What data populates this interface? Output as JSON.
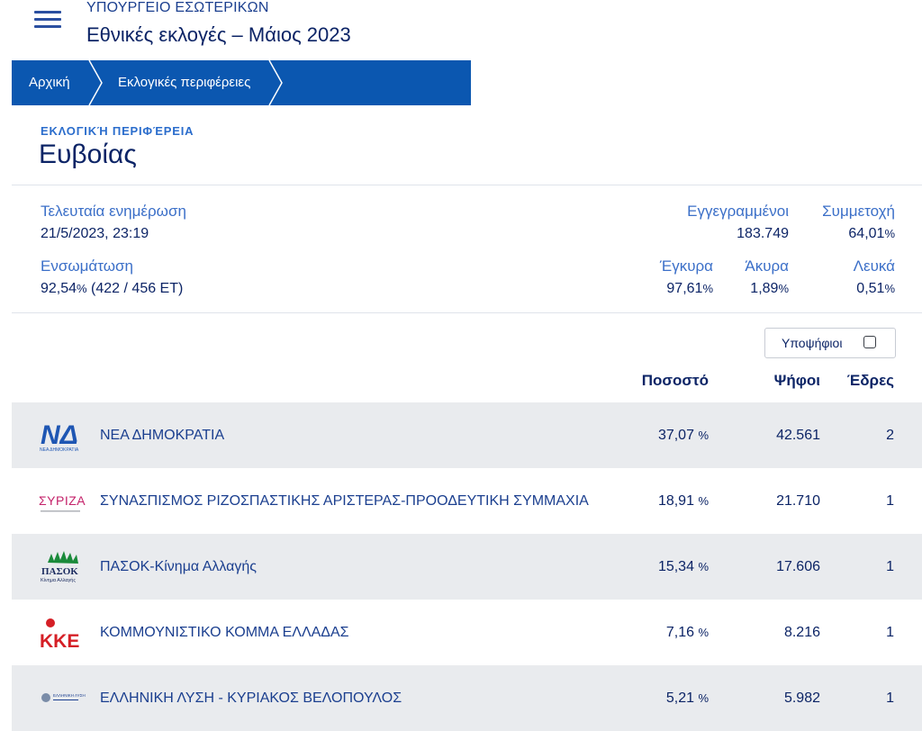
{
  "header": {
    "ministry": "ΥΠΟΥΡΓΕΙΟ ΕΣΩΤΕΡΙΚΩΝ",
    "title": "Εθνικές εκλογές – Μάιος 2023"
  },
  "breadcrumb": [
    "Αρχική",
    "Εκλογικές περιφέρειες"
  ],
  "region": {
    "label": "Εκλογική Περιφέρεια",
    "name": "Ευβοίας"
  },
  "stats": {
    "last_update_label": "Τελευταία ενημέρωση",
    "last_update_value": "21/5/2023, 23:19",
    "integration_label": "Ενσωμάτωση",
    "integration_pct": "92,54",
    "integration_pct_unit": "%",
    "integration_rest": " (422 / 456 ΕΤ)",
    "registered_label": "Εγγεγραμμένοι",
    "registered_value": "183.749",
    "turnout_label": "Συμμετοχή",
    "turnout_value": "64,01",
    "valid_label": "Έγκυρα",
    "valid_value": "97,61",
    "invalid_label": "Άκυρα",
    "invalid_value": "1,89",
    "blank_label": "Λευκά",
    "blank_value": "0,51",
    "pct_unit": "%"
  },
  "candidates_toggle": {
    "label": "Υποψήφιοι",
    "checked": false
  },
  "columns": {
    "pct": "Ποσοστό",
    "votes": "Ψήφοι",
    "seats": "Έδρες"
  },
  "parties": [
    {
      "name": "ΝΕΑ ΔΗΜΟΚΡΑΤΙΑ",
      "pct": "37,07",
      "unit": "%",
      "votes": "42.561",
      "seats": "2",
      "logo_text": "ΝΕΑ ΔΗΜΟΚΡΑΤΙΑ",
      "logo_mark": "ΝΔ"
    },
    {
      "name": "ΣΥΝΑΣΠΙΣΜΟΣ ΡΙΖΟΣΠΑΣΤΙΚΗΣ ΑΡΙΣΤΕΡΑΣ-ΠΡΟΟΔΕΥΤΙΚΗ ΣΥΜΜΑΧΙΑ",
      "pct": "18,91",
      "unit": "%",
      "votes": "21.710",
      "seats": "1",
      "logo_text": "ΣΥΡΙΖΑ",
      "logo_mark": ""
    },
    {
      "name": "ΠΑΣΟΚ-Κίνημα Αλλαγής",
      "pct": "15,34",
      "unit": "%",
      "votes": "17.606",
      "seats": "1",
      "logo_text": "ΠΑΣΟΚ",
      "logo_mark": "Κίνημα Αλλαγής"
    },
    {
      "name": "ΚΟΜΜΟΥΝΙΣΤΙΚΟ ΚΟΜΜΑ ΕΛΛΑΔΑΣ",
      "pct": "7,16",
      "unit": "%",
      "votes": "8.216",
      "seats": "1",
      "logo_text": "ΚΚΕ",
      "logo_mark": ""
    },
    {
      "name": "ΕΛΛΗΝΙΚΗ ΛΥΣΗ - ΚΥΡΙΑΚΟΣ ΒΕΛΟΠΟΥΛΟΣ",
      "pct": "5,21",
      "unit": "%",
      "votes": "5.982",
      "seats": "1",
      "logo_text": "ΕΛΛΗΝΙΚΗ ΛΥΣΗ",
      "logo_mark": ""
    }
  ],
  "colors": {
    "brand_blue": "#0b57b0",
    "text_dark": "#0c2466",
    "text_link": "#3b6fc8",
    "row_shade": "#e9ebee"
  }
}
